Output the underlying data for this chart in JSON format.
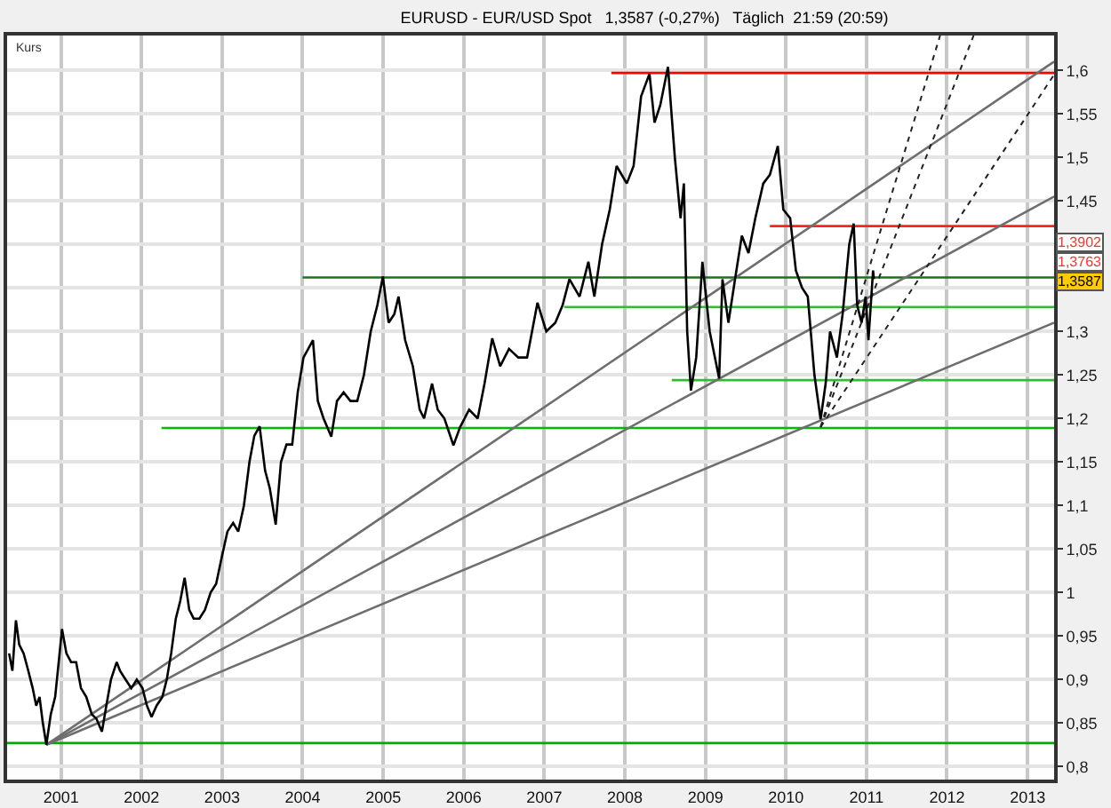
{
  "chart_data": {
    "type": "line",
    "title": "EURUSD - EUR/USD Spot   1,3587 (-0,27%)   Täglich  21:59 (20:59)",
    "xlim": [
      "2000-05-01",
      "2013-05-01"
    ],
    "ylim": [
      0.785,
      1.64
    ],
    "xticks": [
      "2001",
      "2002",
      "2003",
      "2004",
      "2005",
      "2006",
      "2007",
      "2008",
      "2009",
      "2010",
      "2011",
      "2012",
      "2013"
    ],
    "yticks": [
      {
        "value": 0.8,
        "label": "0,8"
      },
      {
        "value": 0.85,
        "label": "0,85"
      },
      {
        "value": 0.9,
        "label": "0,9"
      },
      {
        "value": 0.95,
        "label": "0,95"
      },
      {
        "value": 1,
        "label": "1"
      },
      {
        "value": 1.05,
        "label": "1,05"
      },
      {
        "value": 1.1,
        "label": "1,1"
      },
      {
        "value": 1.15,
        "label": "1,15"
      },
      {
        "value": 1.2,
        "label": "1,2"
      },
      {
        "value": 1.25,
        "label": "1,25"
      },
      {
        "value": 1.3,
        "label": "1,3"
      },
      {
        "value": 1.35,
        "label": null
      },
      {
        "value": 1.4,
        "label": null
      },
      {
        "value": 1.45,
        "label": "1,45"
      },
      {
        "value": 1.5,
        "label": "1,5"
      },
      {
        "value": 1.55,
        "label": "1,55"
      },
      {
        "value": 1.6,
        "label": "1,6"
      }
    ],
    "grid": true,
    "marker": "none",
    "annotations": [
      "Kurs",
      "1,3902",
      "1,3763",
      "1,3587"
    ],
    "series": [
      {
        "color": "#00aa00",
        "line_style": "solid",
        "x": [
          "2000-05-01",
          "2013-05-01"
        ],
        "values": [
          0.827,
          0.827
        ]
      },
      {
        "color": "#00bb00",
        "line_style": "solid",
        "x": [
          "2002-04-01",
          "2013-05-01"
        ],
        "values": [
          1.189,
          1.189
        ]
      },
      {
        "color": "#1f6f1f",
        "line_style": "solid",
        "x": [
          "2004-01-01",
          "2013-05-01"
        ],
        "values": [
          1.362,
          1.362
        ]
      },
      {
        "color": "#33bb33",
        "line_style": "solid",
        "x": [
          "2007-04-01",
          "2013-05-01"
        ],
        "values": [
          1.328,
          1.328
        ]
      },
      {
        "color": "#33bb33",
        "line_style": "solid",
        "x": [
          "2008-08-01",
          "2013-05-01"
        ],
        "values": [
          1.244,
          1.244
        ]
      },
      {
        "color": "#ff0000",
        "line_style": "solid",
        "x": [
          "2007-11-01",
          "2013-05-01"
        ],
        "values": [
          1.597,
          1.597
        ]
      },
      {
        "color": "#ff2020",
        "line_style": "solid",
        "x": [
          "2009-10-20",
          "2013-05-01"
        ],
        "values": [
          1.421,
          1.421
        ]
      },
      {
        "color": "#6e6e6e",
        "line_style": "solid",
        "x": [
          "2000-10-26",
          "2013-05-01"
        ],
        "values": [
          0.825,
          1.61
        ]
      },
      {
        "color": "#6e6e6e",
        "line_style": "solid",
        "x": [
          "2000-10-26",
          "2013-05-01"
        ],
        "values": [
          0.825,
          1.455
        ]
      },
      {
        "color": "#6e6e6e",
        "line_style": "solid",
        "x": [
          "2000-10-26",
          "2013-05-01"
        ],
        "values": [
          0.825,
          1.31
        ]
      },
      {
        "color": "#222222",
        "line_style": "dotted",
        "x": [
          "2010-06-07",
          "2011-12-01"
        ],
        "values": [
          1.19,
          1.64
        ]
      },
      {
        "color": "#222222",
        "line_style": "dotted",
        "x": [
          "2010-06-07",
          "2012-05-01"
        ],
        "values": [
          1.19,
          1.64
        ]
      },
      {
        "color": "#222222",
        "line_style": "dotted",
        "x": [
          "2010-06-07",
          "2013-05-01"
        ],
        "values": [
          1.19,
          1.595
        ]
      },
      {
        "color": "#000000",
        "line_style": "solid",
        "x": [
          "2000-05-10",
          "2000-05-25",
          "2000-06-10",
          "2000-06-25",
          "2000-07-15",
          "2000-08-05",
          "2000-08-25",
          "2000-09-10",
          "2000-09-25",
          "2000-10-10",
          "2000-10-26",
          "2000-11-15",
          "2000-12-05",
          "2000-12-25",
          "2001-01-05",
          "2001-01-25",
          "2001-02-15",
          "2001-03-10",
          "2001-04-01",
          "2001-04-25",
          "2001-05-20",
          "2001-06-10",
          "2001-07-05",
          "2001-07-25",
          "2001-08-15",
          "2001-09-10",
          "2001-09-25",
          "2001-10-20",
          "2001-11-15",
          "2001-12-10",
          "2002-01-05",
          "2002-01-25",
          "2002-02-15",
          "2002-03-10",
          "2002-04-05",
          "2002-04-25",
          "2002-05-15",
          "2002-06-05",
          "2002-06-25",
          "2002-07-15",
          "2002-08-05",
          "2002-08-25",
          "2002-09-20",
          "2002-10-15",
          "2002-11-10",
          "2002-12-05",
          "2002-12-30",
          "2003-01-25",
          "2003-02-20",
          "2003-03-15",
          "2003-04-10",
          "2003-05-05",
          "2003-05-27",
          "2003-06-20",
          "2003-07-15",
          "2003-08-05",
          "2003-09-01",
          "2003-09-25",
          "2003-10-20",
          "2003-11-15",
          "2003-12-10",
          "2004-01-05",
          "2004-02-17",
          "2004-03-10",
          "2004-04-05",
          "2004-05-10",
          "2004-06-05",
          "2004-07-05",
          "2004-08-05",
          "2004-09-05",
          "2004-10-05",
          "2004-11-05",
          "2004-12-05",
          "2004-12-30",
          "2005-01-25",
          "2005-02-20",
          "2005-03-11",
          "2005-04-10",
          "2005-05-15",
          "2005-06-15",
          "2005-07-05",
          "2005-08-10",
          "2005-09-05",
          "2005-10-05",
          "2005-11-15",
          "2005-12-15",
          "2006-01-25",
          "2006-03-05",
          "2006-04-05",
          "2006-05-10",
          "2006-06-15",
          "2006-07-25",
          "2006-09-05",
          "2006-10-15",
          "2006-12-01",
          "2007-01-10",
          "2007-02-20",
          "2007-03-25",
          "2007-04-25",
          "2007-06-10",
          "2007-07-20",
          "2007-08-16",
          "2007-09-20",
          "2007-10-25",
          "2007-11-25",
          "2008-01-10",
          "2008-02-10",
          "2008-03-15",
          "2008-04-22",
          "2008-05-15",
          "2008-06-10",
          "2008-07-15",
          "2008-08-15",
          "2008-09-10",
          "2008-09-25",
          "2008-10-10",
          "2008-10-27",
          "2008-11-20",
          "2008-12-18",
          "2009-01-20",
          "2009-03-04",
          "2009-03-19",
          "2009-04-15",
          "2009-05-15",
          "2009-06-15",
          "2009-07-15",
          "2009-08-15",
          "2009-09-20",
          "2009-10-20",
          "2009-11-25",
          "2009-12-20",
          "2010-01-20",
          "2010-02-15",
          "2010-03-15",
          "2010-04-10",
          "2010-05-10",
          "2010-06-07",
          "2010-06-30",
          "2010-07-20",
          "2010-08-20",
          "2010-09-15",
          "2010-10-15",
          "2010-11-04",
          "2010-11-20",
          "2010-12-10",
          "2010-12-28",
          "2011-01-10",
          "2011-01-31",
          "2011-02-04"
        ],
        "values": [
          0.93,
          0.91,
          0.968,
          0.94,
          0.93,
          0.91,
          0.89,
          0.87,
          0.88,
          0.85,
          0.825,
          0.86,
          0.88,
          0.93,
          0.958,
          0.93,
          0.92,
          0.92,
          0.89,
          0.88,
          0.86,
          0.855,
          0.84,
          0.87,
          0.9,
          0.92,
          0.91,
          0.9,
          0.89,
          0.9,
          0.89,
          0.87,
          0.857,
          0.87,
          0.88,
          0.9,
          0.93,
          0.97,
          0.99,
          1.017,
          0.98,
          0.97,
          0.97,
          0.98,
          1.0,
          1.01,
          1.04,
          1.07,
          1.08,
          1.07,
          1.1,
          1.15,
          1.18,
          1.191,
          1.14,
          1.12,
          1.078,
          1.15,
          1.17,
          1.17,
          1.23,
          1.27,
          1.29,
          1.22,
          1.2,
          1.179,
          1.22,
          1.23,
          1.22,
          1.22,
          1.25,
          1.3,
          1.33,
          1.363,
          1.31,
          1.32,
          1.34,
          1.29,
          1.26,
          1.21,
          1.2,
          1.24,
          1.21,
          1.2,
          1.169,
          1.19,
          1.21,
          1.2,
          1.24,
          1.292,
          1.26,
          1.28,
          1.27,
          1.27,
          1.333,
          1.3,
          1.31,
          1.33,
          1.36,
          1.34,
          1.38,
          1.34,
          1.4,
          1.44,
          1.49,
          1.47,
          1.49,
          1.57,
          1.596,
          1.54,
          1.56,
          1.604,
          1.5,
          1.43,
          1.47,
          1.3,
          1.232,
          1.27,
          1.38,
          1.3,
          1.246,
          1.36,
          1.31,
          1.36,
          1.41,
          1.39,
          1.43,
          1.47,
          1.48,
          1.513,
          1.44,
          1.43,
          1.37,
          1.35,
          1.34,
          1.25,
          1.199,
          1.24,
          1.3,
          1.27,
          1.32,
          1.4,
          1.424,
          1.33,
          1.31,
          1.34,
          1.29,
          1.37,
          1.36
        ]
      }
    ]
  }
}
